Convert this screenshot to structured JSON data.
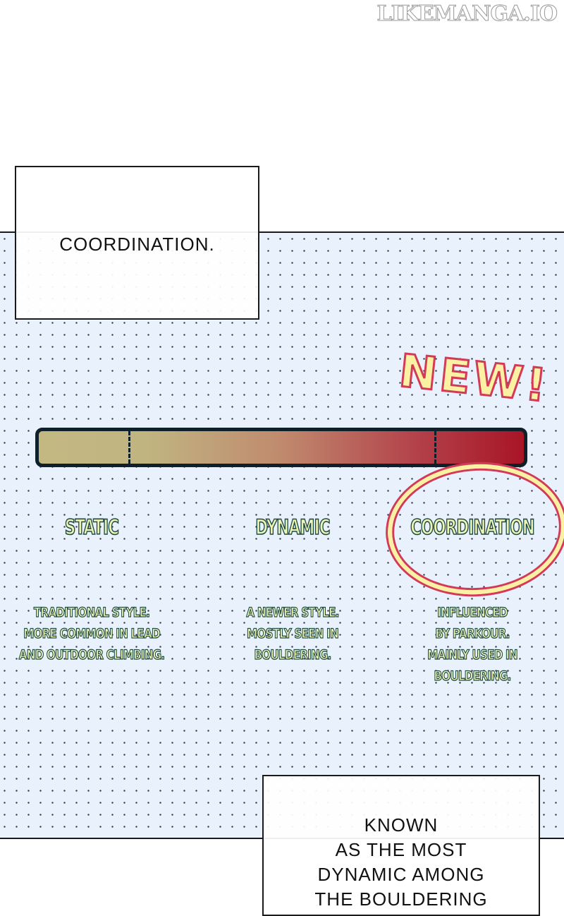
{
  "watermark": "LIKEMANGA.IO",
  "caption_top": "COORDINATION.",
  "new_badge": "NEW!",
  "spectrum": {
    "colors": {
      "start": "#c3b882",
      "end": "#a81526",
      "outline": "#10202a"
    },
    "labels": [
      "STATIC",
      "DYNAMIC",
      "COORDINATION"
    ],
    "highlighted": "COORDINATION",
    "descriptions": [
      [
        "TRADITIONAL STYLE.",
        "MORE COMMON IN LEAD",
        "AND OUTDOOR CLIMBING."
      ],
      [
        "A NEWER STYLE.",
        "MOSTLY SEEN IN",
        "BOULDERING."
      ],
      [
        "INFLUENCED",
        "BY PARKOUR.",
        "MAINLY USED IN",
        "BOULDERING."
      ]
    ]
  },
  "caption_bottom": [
    "KNOWN",
    "AS THE MOST",
    "DYNAMIC AMONG",
    "THE BOULDERING"
  ]
}
